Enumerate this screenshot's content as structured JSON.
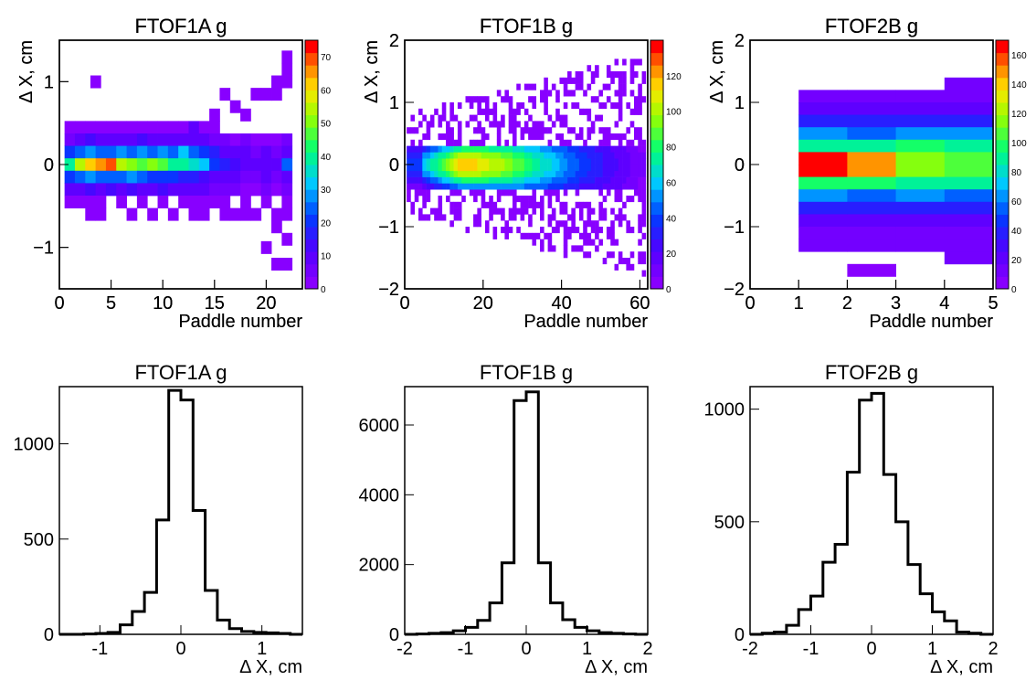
{
  "chart_data": [
    {
      "type": "heatmap",
      "title": "FTOF1A g",
      "xlabel": "Paddle number",
      "ylabel": "Δ X, cm",
      "xlim": [
        0,
        23.5
      ],
      "ylim": [
        -1.5,
        1.5
      ],
      "xticks": [
        0,
        5,
        10,
        15,
        20
      ],
      "yticks": [
        -1,
        0,
        1
      ],
      "zlim": [
        0,
        75
      ],
      "zticks": [
        0,
        10,
        20,
        30,
        40,
        50,
        60,
        70
      ],
      "cells_note": "x = paddle (bin center), y = ΔX bin center, z = counts",
      "cells": [
        [
          1,
          0.45,
          2
        ],
        [
          2,
          0.45,
          2
        ],
        [
          3,
          0.45,
          2
        ],
        [
          4,
          0.45,
          2
        ],
        [
          5,
          0.45,
          2
        ],
        [
          6,
          0.45,
          2
        ],
        [
          7,
          0.45,
          2
        ],
        [
          8,
          0.45,
          3
        ],
        [
          9,
          0.45,
          2
        ],
        [
          10,
          0.45,
          2
        ],
        [
          11,
          0.45,
          3
        ],
        [
          12,
          0.45,
          2
        ],
        [
          13,
          0.45,
          8
        ],
        [
          14,
          0.45,
          2
        ],
        [
          15,
          0.45,
          2
        ],
        [
          1,
          0.3,
          5
        ],
        [
          2,
          0.3,
          8
        ],
        [
          3,
          0.3,
          12
        ],
        [
          4,
          0.3,
          8
        ],
        [
          5,
          0.3,
          10
        ],
        [
          6,
          0.3,
          8
        ],
        [
          7,
          0.3,
          10
        ],
        [
          8,
          0.3,
          12
        ],
        [
          9,
          0.3,
          10
        ],
        [
          10,
          0.3,
          8
        ],
        [
          11,
          0.3,
          10
        ],
        [
          12,
          0.3,
          8
        ],
        [
          13,
          0.3,
          10
        ],
        [
          14,
          0.3,
          8
        ],
        [
          15,
          0.3,
          5
        ],
        [
          16,
          0.3,
          5
        ],
        [
          17,
          0.3,
          3
        ],
        [
          18,
          0.3,
          5
        ],
        [
          19,
          0.3,
          3
        ],
        [
          20,
          0.3,
          3
        ],
        [
          21,
          0.3,
          3
        ],
        [
          22,
          0.3,
          5
        ],
        [
          1,
          0.15,
          20
        ],
        [
          2,
          0.15,
          25
        ],
        [
          3,
          0.15,
          28
        ],
        [
          4,
          0.15,
          25
        ],
        [
          5,
          0.15,
          25
        ],
        [
          6,
          0.15,
          28
        ],
        [
          7,
          0.15,
          25
        ],
        [
          8,
          0.15,
          28
        ],
        [
          9,
          0.15,
          25
        ],
        [
          10,
          0.15,
          28
        ],
        [
          11,
          0.15,
          25
        ],
        [
          12,
          0.15,
          30
        ],
        [
          13,
          0.15,
          25
        ],
        [
          14,
          0.15,
          22
        ],
        [
          15,
          0.15,
          15
        ],
        [
          16,
          0.15,
          10
        ],
        [
          17,
          0.15,
          10
        ],
        [
          18,
          0.15,
          8
        ],
        [
          19,
          0.15,
          5
        ],
        [
          20,
          0.15,
          8
        ],
        [
          21,
          0.15,
          5
        ],
        [
          22,
          0.15,
          8
        ],
        [
          1,
          0.0,
          40
        ],
        [
          2,
          0.0,
          55
        ],
        [
          3,
          0.0,
          60
        ],
        [
          4,
          0.0,
          65
        ],
        [
          5,
          0.0,
          70
        ],
        [
          6,
          0.0,
          55
        ],
        [
          7,
          0.0,
          50
        ],
        [
          8,
          0.0,
          45
        ],
        [
          9,
          0.0,
          50
        ],
        [
          10,
          0.0,
          45
        ],
        [
          11,
          0.0,
          40
        ],
        [
          12,
          0.0,
          40
        ],
        [
          13,
          0.0,
          35
        ],
        [
          14,
          0.0,
          30
        ],
        [
          15,
          0.0,
          20
        ],
        [
          16,
          0.0,
          15
        ],
        [
          17,
          0.0,
          12
        ],
        [
          18,
          0.0,
          10
        ],
        [
          19,
          0.0,
          10
        ],
        [
          20,
          0.0,
          8
        ],
        [
          21,
          0.0,
          10
        ],
        [
          22,
          0.0,
          25
        ],
        [
          1,
          -0.15,
          20
        ],
        [
          2,
          -0.15,
          25
        ],
        [
          3,
          -0.15,
          28
        ],
        [
          4,
          -0.15,
          25
        ],
        [
          5,
          -0.15,
          25
        ],
        [
          6,
          -0.15,
          25
        ],
        [
          7,
          -0.15,
          28
        ],
        [
          8,
          -0.15,
          25
        ],
        [
          9,
          -0.15,
          20
        ],
        [
          10,
          -0.15,
          22
        ],
        [
          11,
          -0.15,
          20
        ],
        [
          12,
          -0.15,
          18
        ],
        [
          13,
          -0.15,
          15
        ],
        [
          14,
          -0.15,
          12
        ],
        [
          15,
          -0.15,
          10
        ],
        [
          16,
          -0.15,
          8
        ],
        [
          17,
          -0.15,
          8
        ],
        [
          18,
          -0.15,
          5
        ],
        [
          19,
          -0.15,
          5
        ],
        [
          20,
          -0.15,
          8
        ],
        [
          21,
          -0.15,
          5
        ],
        [
          22,
          -0.15,
          10
        ],
        [
          1,
          -0.3,
          8
        ],
        [
          2,
          -0.3,
          10
        ],
        [
          3,
          -0.3,
          12
        ],
        [
          4,
          -0.3,
          10
        ],
        [
          5,
          -0.3,
          12
        ],
        [
          6,
          -0.3,
          10
        ],
        [
          7,
          -0.3,
          12
        ],
        [
          8,
          -0.3,
          10
        ],
        [
          9,
          -0.3,
          10
        ],
        [
          10,
          -0.3,
          12
        ],
        [
          11,
          -0.3,
          10
        ],
        [
          12,
          -0.3,
          8
        ],
        [
          13,
          -0.3,
          10
        ],
        [
          14,
          -0.3,
          8
        ],
        [
          15,
          -0.3,
          5
        ],
        [
          16,
          -0.3,
          5
        ],
        [
          17,
          -0.3,
          5
        ],
        [
          18,
          -0.3,
          3
        ],
        [
          19,
          -0.3,
          3
        ],
        [
          20,
          -0.3,
          5
        ],
        [
          21,
          -0.3,
          3
        ],
        [
          22,
          -0.3,
          5
        ],
        [
          1,
          -0.45,
          2
        ],
        [
          2,
          -0.45,
          3
        ],
        [
          3,
          -0.45,
          2
        ],
        [
          4,
          -0.45,
          2
        ],
        [
          6,
          -0.45,
          2
        ],
        [
          8,
          -0.45,
          2
        ],
        [
          10,
          -0.45,
          3
        ],
        [
          12,
          -0.45,
          2
        ],
        [
          13,
          -0.45,
          2
        ],
        [
          14,
          -0.45,
          2
        ],
        [
          15,
          -0.45,
          2
        ],
        [
          16,
          -0.45,
          2
        ],
        [
          18,
          -0.45,
          2
        ],
        [
          20,
          -0.45,
          2
        ],
        [
          22,
          -0.45,
          3
        ],
        [
          3,
          -0.6,
          2
        ],
        [
          4,
          -0.6,
          2
        ],
        [
          7,
          -0.6,
          2
        ],
        [
          9,
          -0.6,
          2
        ],
        [
          11,
          -0.6,
          2
        ],
        [
          13,
          -0.6,
          2
        ],
        [
          14,
          -0.6,
          2
        ],
        [
          16,
          -0.6,
          2
        ],
        [
          17,
          -0.6,
          2
        ],
        [
          18,
          -0.6,
          2
        ],
        [
          19,
          -0.6,
          2
        ],
        [
          21,
          -0.6,
          2
        ],
        [
          22,
          -0.6,
          2
        ],
        [
          3.5,
          1.0,
          2
        ],
        [
          15,
          0.6,
          2
        ],
        [
          16,
          0.85,
          2
        ],
        [
          17,
          0.7,
          2
        ],
        [
          18,
          0.6,
          2
        ],
        [
          19,
          0.85,
          2
        ],
        [
          20,
          0.85,
          2
        ],
        [
          21,
          0.85,
          2
        ],
        [
          22,
          1.0,
          2
        ],
        [
          22,
          1.15,
          2
        ],
        [
          22,
          1.3,
          2
        ],
        [
          21,
          1.0,
          2
        ],
        [
          20,
          -1.0,
          2
        ],
        [
          21,
          -0.75,
          2
        ],
        [
          21,
          -1.2,
          2
        ],
        [
          22,
          -1.2,
          2
        ],
        [
          22,
          -0.9,
          2
        ]
      ]
    },
    {
      "type": "heatmap",
      "title": "FTOF1B g",
      "xlabel": "Paddle number",
      "ylabel": "Δ X, cm",
      "xlim": [
        0,
        62
      ],
      "ylim": [
        -2,
        2
      ],
      "xticks": [
        0,
        20,
        40,
        60
      ],
      "yticks": [
        -2,
        -1,
        0,
        1,
        2
      ],
      "zlim": [
        0,
        140
      ],
      "zticks": [
        0,
        20,
        40,
        60,
        80,
        100,
        120
      ],
      "profile_note": "core distribution: counts per paddle at ΔX ≈ 0 along the band",
      "core_peak": [
        [
          5,
          60
        ],
        [
          10,
          90
        ],
        [
          15,
          120
        ],
        [
          20,
          110
        ],
        [
          25,
          100
        ],
        [
          30,
          85
        ],
        [
          35,
          70
        ],
        [
          40,
          55
        ],
        [
          45,
          40
        ],
        [
          50,
          30
        ],
        [
          55,
          20
        ],
        [
          60,
          8
        ]
      ]
    },
    {
      "type": "heatmap",
      "title": "FTOF2B g",
      "xlabel": "Paddle number",
      "ylabel": "Δ X, cm",
      "xlim": [
        0,
        5
      ],
      "ylim": [
        -2,
        2
      ],
      "xticks": [
        0,
        1,
        2,
        3,
        4,
        5
      ],
      "yticks": [
        -2,
        -1,
        0,
        1,
        2
      ],
      "zlim": [
        0,
        170
      ],
      "zticks": [
        0,
        20,
        40,
        60,
        80,
        100,
        120,
        140,
        160
      ],
      "y_bins": [
        1.3,
        1.1,
        0.9,
        0.7,
        0.5,
        0.3,
        0.1,
        -0.1,
        -0.3,
        -0.5,
        -0.7,
        -0.9,
        -1.1,
        -1.3,
        -1.5,
        -1.7
      ],
      "columns": [
        {
          "x_range": [
            1,
            2
          ],
          "values": [
            0,
            10,
            20,
            40,
            60,
            90,
            165,
            165,
            100,
            60,
            40,
            20,
            15,
            10,
            0,
            0
          ]
        },
        {
          "x_range": [
            2,
            3
          ],
          "values": [
            0,
            10,
            20,
            35,
            55,
            85,
            150,
            150,
            95,
            55,
            35,
            20,
            15,
            10,
            0,
            5
          ]
        },
        {
          "x_range": [
            3,
            4
          ],
          "values": [
            0,
            10,
            25,
            40,
            65,
            95,
            115,
            115,
            90,
            60,
            40,
            25,
            15,
            10,
            0,
            0
          ]
        },
        {
          "x_range": [
            4,
            5
          ],
          "values": [
            10,
            10,
            20,
            40,
            60,
            90,
            105,
            105,
            85,
            55,
            35,
            20,
            15,
            10,
            10,
            0
          ]
        }
      ]
    },
    {
      "type": "bar",
      "title": "FTOF1A g",
      "xlabel": "Δ X, cm",
      "ylabel": "",
      "xlim": [
        -1.5,
        1.5
      ],
      "ylim": [
        0,
        1300
      ],
      "xticks": [
        -1,
        0,
        1
      ],
      "yticks": [
        0,
        500,
        1000
      ],
      "bin_width": 0.15,
      "x": [
        -1.425,
        -1.275,
        -1.125,
        -0.975,
        -0.825,
        -0.675,
        -0.525,
        -0.375,
        -0.225,
        -0.075,
        0.075,
        0.225,
        0.375,
        0.525,
        0.675,
        0.825,
        0.975,
        1.125,
        1.275,
        1.425
      ],
      "values": [
        0,
        0,
        2,
        5,
        10,
        50,
        120,
        220,
        600,
        1280,
        1230,
        650,
        230,
        75,
        30,
        15,
        10,
        8,
        5,
        0
      ]
    },
    {
      "type": "bar",
      "title": "FTOF1B g",
      "xlabel": "Δ X, cm",
      "ylabel": "",
      "xlim": [
        -2,
        2
      ],
      "ylim": [
        0,
        7100
      ],
      "xticks": [
        -2,
        -1,
        0,
        1,
        2
      ],
      "yticks": [
        0,
        2000,
        4000,
        6000
      ],
      "bin_width": 0.2,
      "x": [
        -1.9,
        -1.7,
        -1.5,
        -1.3,
        -1.1,
        -0.9,
        -0.7,
        -0.5,
        -0.3,
        -0.1,
        0.1,
        0.3,
        0.5,
        0.7,
        0.9,
        1.1,
        1.3,
        1.5,
        1.7,
        1.9
      ],
      "values": [
        0,
        10,
        30,
        50,
        100,
        200,
        400,
        900,
        2050,
        6700,
        6950,
        2050,
        900,
        420,
        200,
        100,
        50,
        30,
        10,
        0
      ]
    },
    {
      "type": "bar",
      "title": "FTOF2B g",
      "xlabel": "Δ X, cm",
      "ylabel": "",
      "xlim": [
        -2,
        2
      ],
      "ylim": [
        0,
        1100
      ],
      "xticks": [
        -2,
        -1,
        0,
        1,
        2
      ],
      "yticks": [
        0,
        500,
        1000
      ],
      "bin_width": 0.2,
      "x": [
        -1.9,
        -1.7,
        -1.5,
        -1.3,
        -1.1,
        -0.9,
        -0.7,
        -0.5,
        -0.3,
        -0.1,
        0.1,
        0.3,
        0.5,
        0.7,
        0.9,
        1.1,
        1.3,
        1.5,
        1.7,
        1.9
      ],
      "values": [
        0,
        5,
        10,
        40,
        110,
        170,
        320,
        400,
        720,
        1040,
        1070,
        710,
        500,
        310,
        180,
        100,
        60,
        10,
        5,
        0
      ]
    }
  ]
}
